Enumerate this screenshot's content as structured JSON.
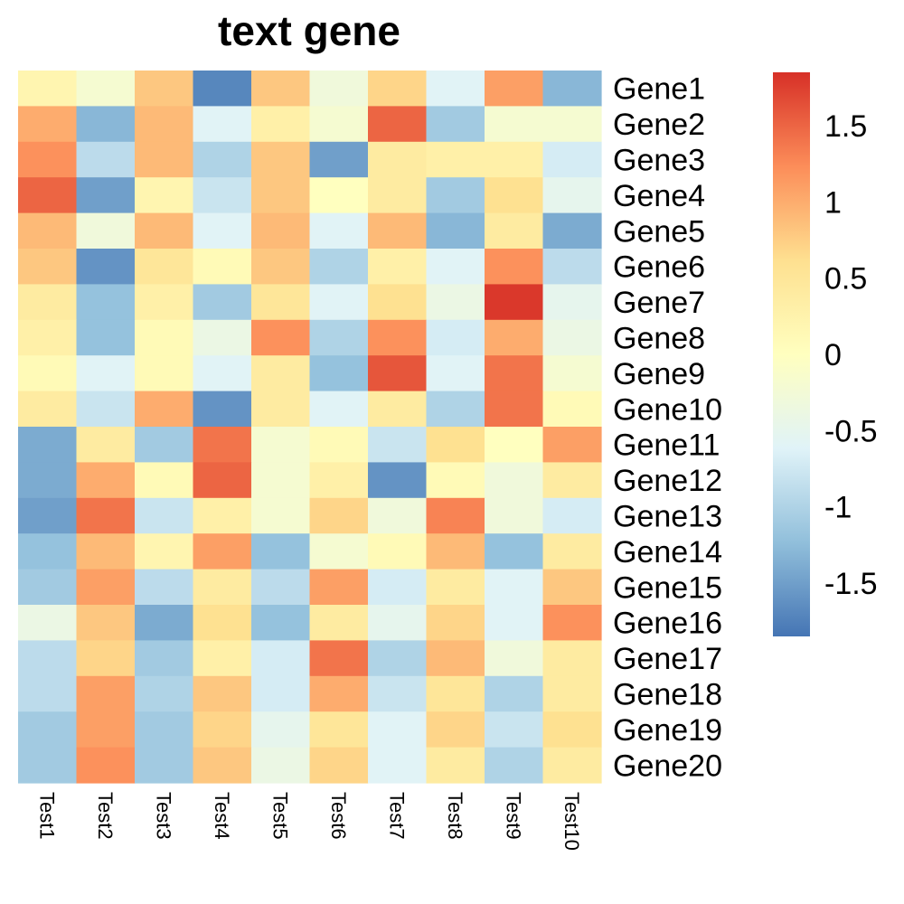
{
  "chart_data": {
    "type": "heatmap",
    "title": "text gene",
    "columns": [
      "Test1",
      "Test2",
      "Test3",
      "Test4",
      "Test5",
      "Test6",
      "Test7",
      "Test8",
      "Test9",
      "Test10"
    ],
    "rows": [
      "Gene1",
      "Gene2",
      "Gene3",
      "Gene4",
      "Gene5",
      "Gene6",
      "Gene7",
      "Gene8",
      "Gene9",
      "Gene10",
      "Gene11",
      "Gene12",
      "Gene13",
      "Gene14",
      "Gene15",
      "Gene16",
      "Gene17",
      "Gene18",
      "Gene19",
      "Gene20"
    ],
    "values": [
      [
        0.2,
        -0.2,
        0.8,
        -1.7,
        0.8,
        -0.3,
        0.7,
        -0.6,
        1.1,
        -1.3
      ],
      [
        1.0,
        -1.3,
        0.9,
        -0.6,
        0.3,
        -0.2,
        1.5,
        -1.1,
        -0.2,
        -0.2
      ],
      [
        1.2,
        -0.9,
        0.9,
        -1.0,
        0.8,
        -1.5,
        0.4,
        0.3,
        0.3,
        -0.7
      ],
      [
        1.5,
        -1.5,
        0.2,
        -0.8,
        0.8,
        0.0,
        0.4,
        -1.1,
        0.6,
        -0.5
      ],
      [
        0.9,
        -0.3,
        0.9,
        -0.6,
        0.9,
        -0.6,
        0.9,
        -1.3,
        0.4,
        -1.4
      ],
      [
        0.8,
        -1.6,
        0.5,
        0.1,
        0.8,
        -1.0,
        0.3,
        -0.6,
        1.2,
        -0.9
      ],
      [
        0.4,
        -1.2,
        0.3,
        -1.1,
        0.5,
        -0.6,
        0.6,
        -0.4,
        1.8,
        -0.5
      ],
      [
        0.3,
        -1.2,
        0.1,
        -0.4,
        1.2,
        -1.0,
        1.2,
        -0.7,
        1.0,
        -0.4
      ],
      [
        0.1,
        -0.6,
        0.1,
        -0.6,
        0.4,
        -1.2,
        1.6,
        -0.6,
        1.4,
        -0.2
      ],
      [
        0.4,
        -0.8,
        1.0,
        -1.6,
        0.4,
        -0.6,
        0.4,
        -1.0,
        1.4,
        0.1
      ],
      [
        -1.4,
        0.4,
        -1.1,
        1.4,
        -0.2,
        0.1,
        -0.8,
        0.6,
        0.0,
        1.1
      ],
      [
        -1.4,
        1.0,
        0.1,
        1.5,
        -0.2,
        0.3,
        -1.6,
        0.1,
        -0.3,
        0.4
      ],
      [
        -1.5,
        1.4,
        -0.8,
        0.3,
        -0.2,
        0.7,
        -0.3,
        1.3,
        -0.3,
        -0.7
      ],
      [
        -1.2,
        0.9,
        0.2,
        1.1,
        -1.2,
        -0.2,
        0.1,
        0.9,
        -1.2,
        0.4
      ],
      [
        -1.1,
        1.1,
        -0.9,
        0.4,
        -0.9,
        1.1,
        -0.7,
        0.4,
        -0.6,
        0.8
      ],
      [
        -0.4,
        0.8,
        -1.4,
        0.6,
        -1.2,
        0.4,
        -0.5,
        0.7,
        -0.6,
        1.2
      ],
      [
        -0.9,
        0.7,
        -1.1,
        0.3,
        -0.7,
        1.4,
        -1.0,
        0.9,
        -0.3,
        0.4
      ],
      [
        -0.9,
        1.1,
        -1.0,
        0.8,
        -0.7,
        1.0,
        -0.8,
        0.5,
        -1.0,
        0.4
      ],
      [
        -1.1,
        1.1,
        -1.1,
        0.7,
        -0.5,
        0.5,
        -0.6,
        0.7,
        -0.8,
        0.6
      ],
      [
        -1.1,
        1.2,
        -1.1,
        0.8,
        -0.4,
        0.7,
        -0.6,
        0.4,
        -1.0,
        0.4
      ]
    ],
    "color_scale": {
      "min": -1.85,
      "max": 1.85,
      "stops": [
        "#4575b4",
        "#91bfdb",
        "#e0f3f8",
        "#ffffbf",
        "#fee090",
        "#fc8d59",
        "#d73027"
      ]
    },
    "legend": {
      "position": "right",
      "ticks": [
        {
          "value": 1.5,
          "label": "1.5"
        },
        {
          "value": 1,
          "label": "1"
        },
        {
          "value": 0.5,
          "label": "0.5"
        },
        {
          "value": 0,
          "label": "0"
        },
        {
          "value": -0.5,
          "label": "-0.5"
        },
        {
          "value": -1,
          "label": "-1"
        },
        {
          "value": -1.5,
          "label": "-1.5"
        }
      ]
    },
    "grid": false
  }
}
